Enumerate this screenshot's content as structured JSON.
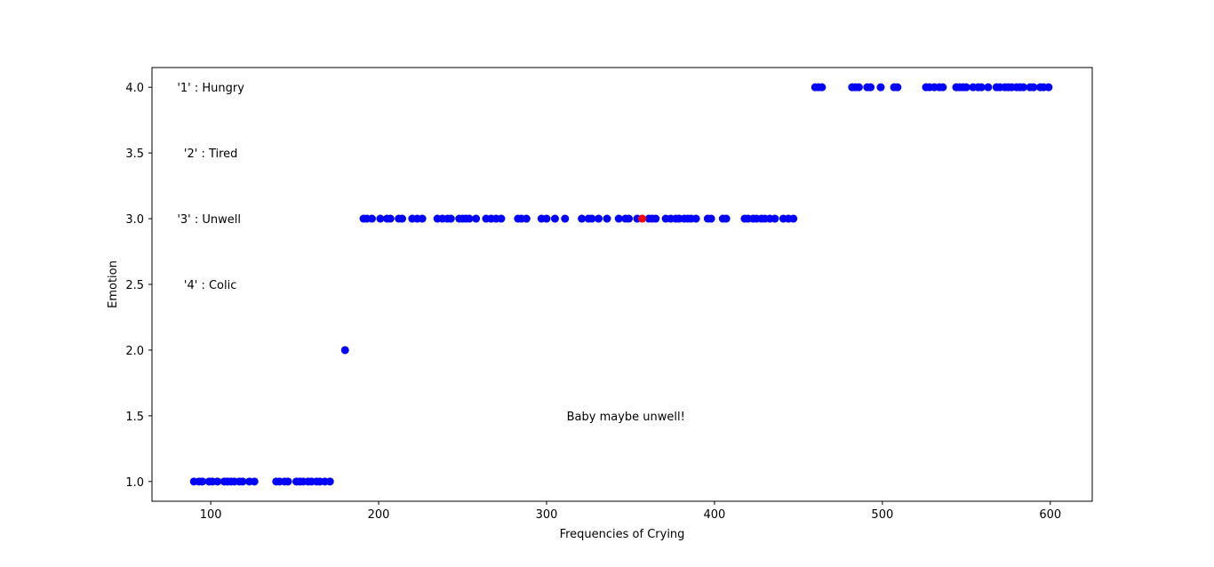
{
  "chart_data": {
    "type": "scatter",
    "xlabel": "Frequencies of Crying",
    "ylabel": "Emotion",
    "xlim": [
      65,
      625
    ],
    "ylim": [
      0.85,
      4.15
    ],
    "xticks": [
      100,
      200,
      300,
      400,
      500,
      600
    ],
    "yticks": [
      1.0,
      1.5,
      2.0,
      2.5,
      3.0,
      3.5,
      4.0
    ],
    "xtick_labels": [
      "100",
      "200",
      "300",
      "400",
      "500",
      "600"
    ],
    "ytick_labels": [
      "1.0",
      "1.5",
      "2.0",
      "2.5",
      "3.0",
      "3.5",
      "4.0"
    ],
    "grid": false,
    "annotations": [
      {
        "text": "'1' : Hungry",
        "x": 80,
        "y": 4.0
      },
      {
        "text": "'2' : Tired",
        "x": 84,
        "y": 3.5
      },
      {
        "text": "'3' : Unwell",
        "x": 80,
        "y": 3.0
      },
      {
        "text": "'4' : Colic",
        "x": 84,
        "y": 2.5
      },
      {
        "text": "Baby maybe unwell!",
        "x": 312,
        "y": 1.5
      }
    ],
    "series": [
      {
        "color": "#0000ff",
        "points": [
          [
            90,
            1
          ],
          [
            93,
            1
          ],
          [
            95,
            1
          ],
          [
            99,
            1
          ],
          [
            101,
            1
          ],
          [
            104,
            1
          ],
          [
            108,
            1
          ],
          [
            110,
            1
          ],
          [
            112,
            1
          ],
          [
            114,
            1
          ],
          [
            117,
            1
          ],
          [
            119,
            1
          ],
          [
            123,
            1
          ],
          [
            126,
            1
          ],
          [
            139,
            1
          ],
          [
            141,
            1
          ],
          [
            144,
            1
          ],
          [
            146,
            1
          ],
          [
            151,
            1
          ],
          [
            153,
            1
          ],
          [
            155,
            1
          ],
          [
            158,
            1
          ],
          [
            160,
            1
          ],
          [
            163,
            1
          ],
          [
            165,
            1
          ],
          [
            168,
            1
          ],
          [
            171,
            1
          ],
          [
            180,
            2
          ],
          [
            191,
            3
          ],
          [
            193,
            3
          ],
          [
            196,
            3
          ],
          [
            201,
            3
          ],
          [
            205,
            3
          ],
          [
            207,
            3
          ],
          [
            212,
            3
          ],
          [
            214,
            3
          ],
          [
            220,
            3
          ],
          [
            223,
            3
          ],
          [
            226,
            3
          ],
          [
            235,
            3
          ],
          [
            238,
            3
          ],
          [
            241,
            3
          ],
          [
            243,
            3
          ],
          [
            248,
            3
          ],
          [
            250,
            3
          ],
          [
            252,
            3
          ],
          [
            254,
            3
          ],
          [
            258,
            3
          ],
          [
            264,
            3
          ],
          [
            267,
            3
          ],
          [
            270,
            3
          ],
          [
            273,
            3
          ],
          [
            283,
            3
          ],
          [
            285,
            3
          ],
          [
            288,
            3
          ],
          [
            297,
            3
          ],
          [
            300,
            3
          ],
          [
            305,
            3
          ],
          [
            311,
            3
          ],
          [
            321,
            3
          ],
          [
            325,
            3
          ],
          [
            327,
            3
          ],
          [
            331,
            3
          ],
          [
            336,
            3
          ],
          [
            343,
            3
          ],
          [
            347,
            3
          ],
          [
            349,
            3
          ],
          [
            354,
            3
          ],
          [
            361,
            3
          ],
          [
            363,
            3
          ],
          [
            365,
            3
          ],
          [
            371,
            3
          ],
          [
            374,
            3
          ],
          [
            377,
            3
          ],
          [
            379,
            3
          ],
          [
            382,
            3
          ],
          [
            384,
            3
          ],
          [
            386,
            3
          ],
          [
            389,
            3
          ],
          [
            396,
            3
          ],
          [
            398,
            3
          ],
          [
            405,
            3
          ],
          [
            407,
            3
          ],
          [
            418,
            3
          ],
          [
            420,
            3
          ],
          [
            423,
            3
          ],
          [
            425,
            3
          ],
          [
            428,
            3
          ],
          [
            430,
            3
          ],
          [
            433,
            3
          ],
          [
            436,
            3
          ],
          [
            441,
            3
          ],
          [
            444,
            3
          ],
          [
            447,
            3
          ],
          [
            460,
            4
          ],
          [
            462,
            4
          ],
          [
            464,
            4
          ],
          [
            482,
            4
          ],
          [
            484,
            4
          ],
          [
            486,
            4
          ],
          [
            491,
            4
          ],
          [
            493,
            4
          ],
          [
            499,
            4
          ],
          [
            507,
            4
          ],
          [
            509,
            4
          ],
          [
            526,
            4
          ],
          [
            528,
            4
          ],
          [
            531,
            4
          ],
          [
            534,
            4
          ],
          [
            536,
            4
          ],
          [
            544,
            4
          ],
          [
            546,
            4
          ],
          [
            548,
            4
          ],
          [
            550,
            4
          ],
          [
            554,
            4
          ],
          [
            557,
            4
          ],
          [
            559,
            4
          ],
          [
            563,
            4
          ],
          [
            568,
            4
          ],
          [
            570,
            4
          ],
          [
            573,
            4
          ],
          [
            575,
            4
          ],
          [
            577,
            4
          ],
          [
            580,
            4
          ],
          [
            582,
            4
          ],
          [
            584,
            4
          ],
          [
            588,
            4
          ],
          [
            590,
            4
          ],
          [
            594,
            4
          ],
          [
            596,
            4
          ],
          [
            599,
            4
          ]
        ]
      },
      {
        "color": "#ff0000",
        "points": [
          [
            357,
            3
          ]
        ]
      }
    ]
  }
}
